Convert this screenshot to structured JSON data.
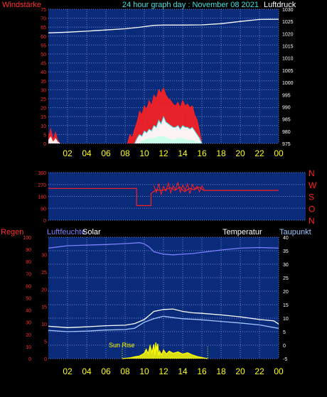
{
  "colors": {
    "plot_bg": "#0a2a7a",
    "grid": "#6f86c9",
    "red": "#ff2020",
    "white": "#ffffff",
    "cyan": "#40e0e0",
    "yellow": "#ffff20",
    "lightcyan": "#c8ffe8",
    "pressure": "#ffffff",
    "humidity": "#8080ff",
    "temp": "#ffffff",
    "dew": "#a0c8ff",
    "solar": "#ffff00"
  },
  "chart_data": [
    {
      "type": "line",
      "title": "24 hour graph day : November 08 2021",
      "left_label": "Windstärke",
      "right_label": "Luftdruck",
      "xlim": [
        0,
        24
      ],
      "x_ticks": [
        "02",
        "04",
        "06",
        "08",
        "10",
        "12",
        "14",
        "16",
        "18",
        "20",
        "22",
        "00"
      ],
      "y_left_lim": [
        0,
        75
      ],
      "y_left_ticks": [
        "0",
        "5",
        "10",
        "15",
        "20",
        "25",
        "30",
        "35",
        "40",
        "45",
        "50",
        "55",
        "60",
        "65",
        "70",
        "75"
      ],
      "y_right_lim": [
        975,
        1030
      ],
      "y_right_ticks": [
        "975",
        "980",
        "985",
        "990",
        "995",
        "1000",
        "1005",
        "1010",
        "1015",
        "1020",
        "1025",
        "1030"
      ],
      "series": [
        {
          "axis": "right",
          "x": [
            0,
            2,
            4,
            6,
            8,
            9.5,
            11,
            12,
            14,
            16,
            18,
            20,
            22,
            24
          ],
          "y": [
            1020.3,
            1020.6,
            1021,
            1021.5,
            1022,
            1022.6,
            1023.4,
            1023.5,
            1023.5,
            1023.6,
            1024.1,
            1025,
            1025.8,
            1025.9
          ]
        },
        {
          "axis": "left",
          "x": [
            0,
            0.25,
            0.5,
            0.75,
            1.0,
            1.25,
            8.25,
            8.5,
            8.75,
            9.0,
            9.25,
            9.5,
            9.75,
            10.0,
            10.25,
            10.5,
            10.75,
            11.0,
            11.25,
            11.5,
            11.75,
            12.0,
            12.25,
            12.5,
            12.75,
            13.0,
            13.25,
            13.5,
            13.75,
            14.0,
            14.25,
            14.5,
            14.75,
            15.0,
            15.25,
            15.5,
            15.75,
            16.0
          ],
          "y": [
            4,
            9,
            3,
            7,
            2,
            0,
            0,
            5,
            3,
            8,
            12,
            18,
            16,
            21,
            19,
            24,
            21,
            27,
            25,
            30,
            28,
            31,
            27,
            25,
            24,
            22,
            21,
            23,
            20,
            24,
            21,
            22,
            20,
            21,
            16,
            13,
            7,
            0
          ]
        },
        {
          "axis": "left",
          "x": [
            0,
            0.25,
            0.5,
            0.75,
            1.0,
            1.25,
            9.0,
            9.25,
            9.5,
            9.75,
            10.0,
            10.25,
            10.5,
            10.75,
            11.0,
            11.25,
            11.5,
            11.75,
            12.0,
            12.25,
            12.5,
            12.75,
            13.0,
            13.25,
            13.5,
            13.75,
            14.0,
            14.25,
            14.5,
            14.75,
            15.0,
            15.25,
            15.5,
            15.75,
            16.0
          ],
          "y": [
            2,
            4,
            1,
            3,
            1,
            0,
            0,
            3,
            5,
            4,
            7,
            6,
            8,
            7,
            10,
            9,
            13,
            11,
            15,
            12,
            11,
            10,
            9,
            9,
            10,
            8,
            10,
            9,
            9,
            8,
            9,
            7,
            5,
            3,
            0
          ]
        },
        {
          "axis": "left",
          "x": [
            9.5,
            10.0,
            10.5,
            11.0,
            11.5,
            12.0,
            12.5,
            13.0,
            13.5,
            14.0,
            14.5,
            15.0,
            15.5,
            16.0
          ],
          "y": [
            1,
            2,
            3,
            3,
            4,
            4,
            3,
            2,
            3,
            3,
            2,
            2,
            1,
            0
          ]
        }
      ]
    },
    {
      "type": "line",
      "xlim": [
        0,
        24
      ],
      "y_left_lim": [
        0,
        360
      ],
      "y_left_ticks": [
        "0",
        "90",
        "180",
        "270",
        "360"
      ],
      "y_right_labels": [
        "N",
        "W",
        "S",
        "O",
        "N"
      ],
      "series": [
        {
          "axis": "left",
          "x": [
            0,
            0.1,
            9.2,
            9.2,
            10.7,
            10.7,
            11.2,
            11.7,
            12.2,
            12.7,
            13.2,
            13.7,
            14.2,
            14.7,
            15.2,
            15.7,
            16.2,
            16.5,
            24
          ],
          "y": [
            245,
            240,
            240,
            110,
            110,
            200,
            230,
            225,
            230,
            245,
            225,
            250,
            215,
            240,
            230,
            250,
            225,
            225,
            225
          ]
        },
        {
          "axis": "left",
          "x": [
            11.0,
            11.25,
            11.5,
            11.75,
            12.0,
            12.25,
            12.5,
            12.75,
            13.0,
            13.25,
            13.5,
            13.75,
            14.0,
            14.25,
            14.5,
            14.75,
            15.0,
            15.25,
            15.5,
            15.75,
            16.0,
            16.25
          ],
          "y": [
            260,
            210,
            275,
            195,
            255,
            220,
            280,
            205,
            260,
            230,
            285,
            210,
            265,
            225,
            275,
            200,
            270,
            235,
            255,
            215,
            260,
            230
          ]
        }
      ]
    },
    {
      "type": "line",
      "left_label": "Regen",
      "labels": [
        "Luftfeuchte",
        "Solar",
        "Temperatur",
        "Taupunkt"
      ],
      "annotation": "Sun Rise",
      "sunrise_hour": 7.7,
      "sunset_hour": 16.6,
      "xlim": [
        0,
        24
      ],
      "x_ticks": [
        "02",
        "04",
        "06",
        "08",
        "10",
        "12",
        "14",
        "16",
        "18",
        "20",
        "22",
        "00"
      ],
      "y_hum_lim": [
        0,
        100
      ],
      "y_hum_ticks": [
        "0",
        "10",
        "20",
        "30",
        "40",
        "50",
        "60",
        "70",
        "80",
        "90",
        "100"
      ],
      "y_rain_lim": [
        0,
        35
      ],
      "y_rain_ticks": [
        "0",
        "5",
        "10",
        "15",
        "20",
        "25",
        "30"
      ],
      "y_temp_lim": [
        -5,
        40
      ],
      "y_temp_ticks": [
        "-5",
        "0",
        "5",
        "10",
        "15",
        "20",
        "25",
        "30",
        "35",
        "40"
      ],
      "series": [
        {
          "axis": "hum",
          "x": [
            0,
            1,
            2,
            4,
            6,
            7.5,
            8.5,
            9.5,
            10,
            10.5,
            11,
            12,
            13,
            14,
            15,
            16,
            18,
            20,
            22,
            24
          ],
          "y": [
            91,
            92,
            93,
            93.5,
            94,
            94.5,
            95,
            95.5,
            94.5,
            92,
            88,
            86,
            85.5,
            86,
            86.5,
            87.5,
            89.5,
            91,
            91.5,
            91
          ]
        },
        {
          "axis": "temp",
          "x": [
            0,
            2,
            4,
            6,
            8,
            9,
            10,
            10.5,
            11,
            12,
            13,
            14,
            15,
            16,
            18,
            20,
            22,
            23.5,
            24
          ],
          "y": [
            7,
            6.5,
            6.8,
            7.2,
            7.4,
            8,
            9.5,
            11,
            12.5,
            13.2,
            13.4,
            12.5,
            12,
            11.8,
            11.2,
            10.5,
            9.5,
            9,
            7.8
          ]
        },
        {
          "axis": "temp",
          "x": [
            0,
            2,
            4,
            6,
            8,
            9,
            10,
            11,
            12,
            13,
            14,
            15,
            16,
            18,
            20,
            22,
            24
          ],
          "y": [
            5.5,
            5,
            5.2,
            5.6,
            5.8,
            6.3,
            8.5,
            9.8,
            10.7,
            10.2,
            9.8,
            9.6,
            9.4,
            8.8,
            8.2,
            7.5,
            6.2
          ]
        },
        {
          "axis": "temp",
          "x": [
            7.7,
            8.5,
            9,
            9.5,
            10,
            10.2,
            10.4,
            10.6,
            10.8,
            11.0,
            11.1,
            11.2,
            11.3,
            11.4,
            11.5,
            11.6,
            11.8,
            12.0,
            12.3,
            12.6,
            13.0,
            13.5,
            14.0,
            14.5,
            15.0,
            15.5,
            16.0,
            16.6
          ],
          "y": [
            -5,
            -4.7,
            -4.3,
            -4,
            -3,
            -1.5,
            -3.2,
            -0.2,
            -2.7,
            0.3,
            -3.5,
            1.0,
            -2.0,
            0.5,
            -3.8,
            -2.2,
            -3.6,
            -1.8,
            -3.3,
            -2.2,
            -3.0,
            -2.5,
            -3.3,
            -2.8,
            -3.6,
            -4.2,
            -4.6,
            -5
          ]
        }
      ]
    }
  ]
}
